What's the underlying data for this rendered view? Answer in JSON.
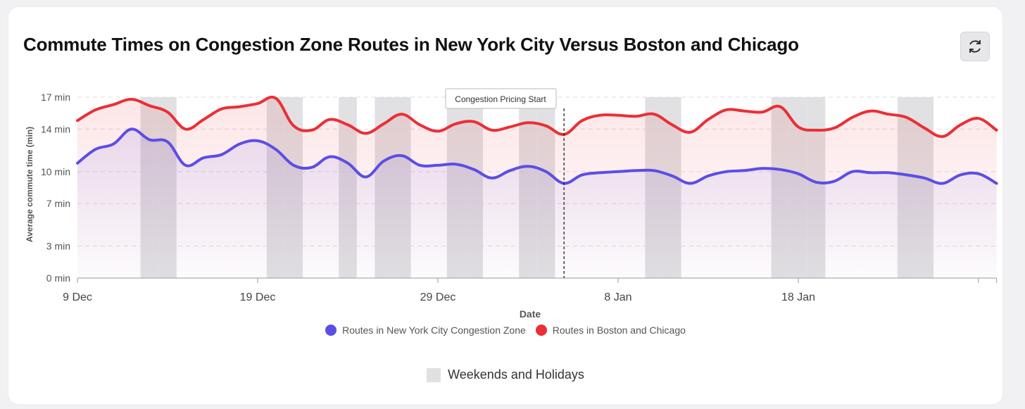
{
  "title": "Commute Times on Congestion Zone Routes in New York City Versus Boston and Chicago",
  "toolbar": {
    "refresh_icon": "refresh-icon"
  },
  "colors": {
    "nyc": "#5b4ee6",
    "bos_chi": "#ea2f36",
    "shade": "#e1e1e3"
  },
  "chart_data": {
    "type": "line",
    "xlabel": "Date",
    "ylabel": "Average commute time (min)",
    "x_start": "9 Dec",
    "x_ticks": [
      "9 Dec",
      "19 Dec",
      "29 Dec",
      "8 Jan",
      "18 Jan"
    ],
    "y_ticks": [
      "0 min",
      "3 min",
      "7 min",
      "10 min",
      "14 min",
      "17 min"
    ],
    "ylim": [
      0,
      17
    ],
    "grid": true,
    "annotation": "Congestion Pricing Start",
    "annotation_x": "5 Jan",
    "shaded_label": "Weekends and Holidays",
    "shaded_days": [
      "13 Dec",
      "14 Dec",
      "20 Dec",
      "21 Dec",
      "24 Dec",
      "26 Dec",
      "27 Dec",
      "30 Dec",
      "31 Dec",
      "3 Jan",
      "4 Jan",
      "10 Jan",
      "11 Jan",
      "17 Jan",
      "18 Jan",
      "19 Jan",
      "24 Jan",
      "25 Jan"
    ],
    "x": [
      "9 Dec",
      "10 Dec",
      "11 Dec",
      "12 Dec",
      "13 Dec",
      "14 Dec",
      "15 Dec",
      "16 Dec",
      "17 Dec",
      "18 Dec",
      "19 Dec",
      "20 Dec",
      "21 Dec",
      "22 Dec",
      "23 Dec",
      "24 Dec",
      "25 Dec",
      "26 Dec",
      "27 Dec",
      "28 Dec",
      "29 Dec",
      "30 Dec",
      "31 Dec",
      "1 Jan",
      "2 Jan",
      "3 Jan",
      "4 Jan",
      "5 Jan",
      "6 Jan",
      "7 Jan",
      "8 Jan",
      "9 Jan",
      "10 Jan",
      "11 Jan",
      "12 Jan",
      "13 Jan",
      "14 Jan",
      "15 Jan",
      "16 Jan",
      "17 Jan",
      "18 Jan",
      "19 Jan",
      "20 Jan",
      "21 Jan",
      "22 Jan",
      "23 Jan",
      "24 Jan",
      "25 Jan",
      "26 Jan",
      "27 Jan",
      "28 Jan",
      "29 Jan"
    ],
    "series": [
      {
        "name": "Routes in New York City Congestion Zone",
        "values": [
          10.8,
          12.1,
          12.6,
          14.0,
          13.0,
          12.8,
          10.6,
          11.3,
          11.6,
          12.6,
          12.9,
          12.1,
          10.6,
          10.4,
          11.4,
          10.8,
          9.5,
          11.0,
          11.5,
          10.6,
          10.6,
          10.7,
          10.2,
          9.4,
          10.1,
          10.5,
          10.0,
          8.9,
          9.7,
          9.9,
          10.0,
          10.1,
          10.1,
          9.6,
          8.9,
          9.6,
          10.0,
          10.1,
          10.3,
          10.2,
          9.8,
          9.0,
          9.1,
          10.0,
          9.9,
          9.9,
          9.7,
          9.4,
          8.9,
          9.7,
          9.8,
          8.9
        ]
      },
      {
        "name": "Routes in Boston and Chicago",
        "values": [
          14.8,
          15.8,
          16.3,
          16.8,
          16.2,
          15.6,
          14.0,
          14.9,
          15.9,
          16.1,
          16.4,
          16.9,
          14.3,
          13.9,
          14.9,
          14.4,
          13.6,
          14.5,
          15.4,
          14.4,
          13.8,
          14.5,
          14.7,
          13.9,
          14.2,
          14.6,
          14.3,
          13.5,
          14.8,
          15.3,
          15.3,
          15.2,
          15.4,
          14.4,
          13.7,
          14.9,
          15.8,
          15.7,
          15.6,
          16.1,
          14.2,
          13.9,
          14.1,
          15.1,
          15.7,
          15.4,
          15.1,
          14.1,
          13.3,
          14.4,
          15.0,
          13.9
        ]
      }
    ],
    "legend_position": "bottom"
  }
}
